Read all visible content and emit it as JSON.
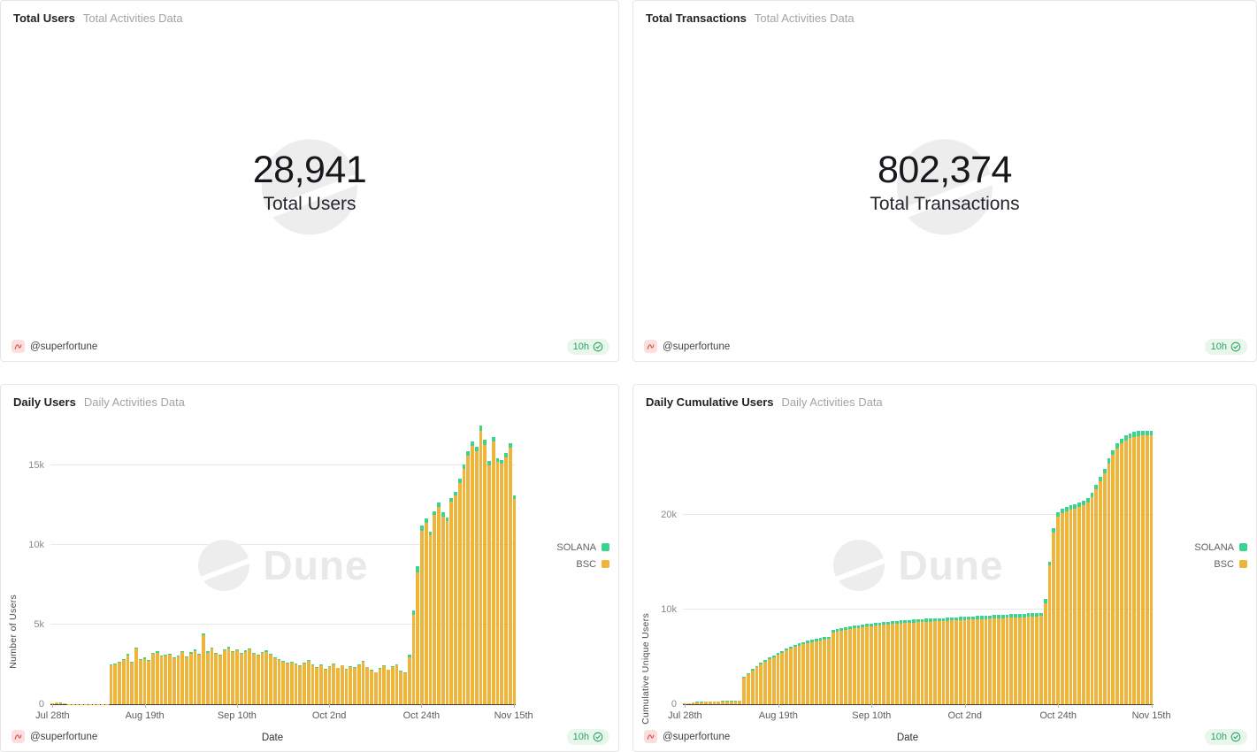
{
  "watermark_text": "Dune",
  "footer": {
    "handle": "@superfortune",
    "badge_time": "10h"
  },
  "colors": {
    "bsc": "#EFB53A",
    "solana": "#3BD48E",
    "badge_bg": "#E8F6EC",
    "badge_text": "#2AA463",
    "gridline": "#E9E9E9",
    "axis_line": "#3F3F3F",
    "watermark": "#EDEDED"
  },
  "counters": [
    {
      "title": "Total Users",
      "subtitle": "Total Activities Data",
      "value": "28,941",
      "label": "Total Users"
    },
    {
      "title": "Total Transactions",
      "subtitle": "Total Activities Data",
      "value": "802,374",
      "label": "Total Transactions"
    }
  ],
  "chart_panels": [
    {
      "title": "Daily Users",
      "subtitle": "Daily Activities Data"
    },
    {
      "title": "Daily Cumulative Users",
      "subtitle": "Daily Activities Data"
    }
  ],
  "chart_data": [
    {
      "type": "bar",
      "stacked": true,
      "title": "Daily Users",
      "xlabel": "Date",
      "ylabel": "Number of Users",
      "ylim": [
        0,
        17500
      ],
      "yticks": [
        0,
        5000,
        10000,
        15000
      ],
      "ytick_labels": [
        "0",
        "5k",
        "10k",
        "15k"
      ],
      "xticks": [
        "Jul 28th",
        "Aug 19th",
        "Sep 10th",
        "Oct 2nd",
        "Oct 24th",
        "Nov 15th"
      ],
      "xtick_positions": [
        0,
        22,
        44,
        66,
        88,
        110
      ],
      "x_range": "Jul 28 - Nov 15, daily (111 bars)",
      "legend": [
        "SOLANA",
        "BSC"
      ],
      "legend_position": "right",
      "grid": true,
      "series": [
        {
          "name": "BSC",
          "color": "#EFB53A",
          "values": [
            30,
            110,
            80,
            45,
            25,
            20,
            15,
            15,
            12,
            10,
            10,
            12,
            15,
            20,
            2450,
            2520,
            2610,
            2780,
            3060,
            2590,
            3480,
            2760,
            2850,
            2700,
            3150,
            3240,
            2980,
            3060,
            3120,
            2870,
            3010,
            3260,
            2930,
            3180,
            3350,
            3100,
            4330,
            3240,
            3490,
            3160,
            3040,
            3390,
            3500,
            3270,
            3380,
            3160,
            3290,
            3420,
            3180,
            3060,
            3210,
            3300,
            3120,
            2890,
            2760,
            2680,
            2540,
            2610,
            2480,
            2390,
            2550,
            2700,
            2460,
            2280,
            2430,
            2190,
            2340,
            2510,
            2260,
            2420,
            2190,
            2350,
            2280,
            2460,
            2650,
            2310,
            2110,
            1980,
            2230,
            2390,
            2150,
            2320,
            2440,
            2060,
            1950,
            2950,
            5600,
            8300,
            10900,
            11400,
            10600,
            11900,
            12400,
            11800,
            11500,
            12700,
            13100,
            13900,
            14800,
            15600,
            16200,
            15900,
            17200,
            16300,
            15000,
            16500,
            15200,
            15100,
            15500,
            16100,
            12900
          ]
        },
        {
          "name": "SOLANA",
          "color": "#3BD48E",
          "values": [
            0,
            5,
            5,
            0,
            0,
            0,
            0,
            0,
            0,
            0,
            0,
            0,
            0,
            0,
            60,
            55,
            70,
            65,
            80,
            60,
            90,
            65,
            70,
            60,
            75,
            80,
            65,
            70,
            75,
            60,
            70,
            85,
            65,
            75,
            85,
            70,
            110,
            75,
            85,
            70,
            65,
            80,
            85,
            75,
            80,
            70,
            75,
            85,
            70,
            65,
            75,
            80,
            70,
            60,
            55,
            55,
            50,
            55,
            50,
            45,
            55,
            60,
            50,
            45,
            50,
            45,
            50,
            55,
            45,
            50,
            45,
            50,
            45,
            55,
            60,
            50,
            40,
            40,
            45,
            50,
            45,
            50,
            55,
            40,
            40,
            150,
            280,
            350,
            300,
            260,
            220,
            240,
            250,
            230,
            220,
            250,
            260,
            270,
            280,
            290,
            300,
            290,
            310,
            300,
            270,
            290,
            270,
            260,
            270,
            280,
            230
          ]
        }
      ]
    },
    {
      "type": "bar",
      "stacked": true,
      "title": "Daily Cumulative Users",
      "xlabel": "Date",
      "ylabel": "Cumulative Unique Users",
      "ylim": [
        0,
        29500
      ],
      "yticks": [
        0,
        10000,
        20000
      ],
      "ytick_labels": [
        "0",
        "10k",
        "20k"
      ],
      "xticks": [
        "Jul 28th",
        "Aug 19th",
        "Sep 10th",
        "Oct 2nd",
        "Oct 24th",
        "Nov 15th"
      ],
      "xtick_positions": [
        0,
        22,
        44,
        66,
        88,
        110
      ],
      "x_range": "Jul 28 - Nov 15, daily (111 bars)",
      "legend": [
        "SOLANA",
        "BSC"
      ],
      "legend_position": "right",
      "grid": true,
      "final_total": 28941,
      "series": [
        {
          "name": "BSC",
          "color": "#EFB53A",
          "values": [
            50,
            120,
            175,
            210,
            233,
            251,
            264,
            277,
            287,
            296,
            305,
            315,
            328,
            346,
            2800,
            3210,
            3600,
            3930,
            4240,
            4500,
            4760,
            5010,
            5245,
            5460,
            5670,
            5875,
            6057,
            6221,
            6366,
            6491,
            6597,
            6693,
            6780,
            6857,
            6924,
            7605,
            7700,
            7785,
            7866,
            7941,
            8016,
            8082,
            8148,
            8205,
            8262,
            8310,
            8356,
            8404,
            8442,
            8482,
            8520,
            8558,
            8586,
            8614,
            8642,
            8670,
            8698,
            8726,
            8744,
            8762,
            8780,
            8808,
            8836,
            8854,
            8872,
            8900,
            8928,
            8956,
            8974,
            8992,
            9010,
            9038,
            9056,
            9084,
            9112,
            9130,
            9148,
            9166,
            9184,
            9202,
            9220,
            9248,
            9276,
            9294,
            9322,
            10700,
            14670,
            18150,
            19840,
            20235,
            20432,
            20580,
            20728,
            20876,
            21074,
            21322,
            21920,
            22718,
            23616,
            24414,
            25512,
            26410,
            27108,
            27606,
            27954,
            28153,
            28302,
            28401,
            28441,
            28441,
            28441
          ]
        },
        {
          "name": "SOLANA",
          "color": "#3BD48E",
          "values": [
            10,
            20,
            25,
            30,
            32,
            34,
            36,
            38,
            40,
            41,
            42,
            44,
            46,
            48,
            100,
            110,
            120,
            130,
            140,
            150,
            160,
            170,
            175,
            180,
            190,
            195,
            203,
            209,
            214,
            219,
            223,
            227,
            230,
            233,
            236,
            245,
            250,
            255,
            264,
            269,
            274,
            278,
            282,
            285,
            288,
            290,
            292,
            294,
            296,
            298,
            300,
            302,
            304,
            306,
            308,
            310,
            312,
            314,
            316,
            318,
            320,
            322,
            324,
            326,
            328,
            330,
            332,
            334,
            336,
            338,
            340,
            342,
            344,
            346,
            348,
            350,
            352,
            354,
            356,
            358,
            360,
            362,
            364,
            366,
            368,
            400,
            430,
            450,
            460,
            465,
            468,
            470,
            472,
            474,
            476,
            478,
            480,
            482,
            484,
            486,
            488,
            490,
            492,
            494,
            496,
            498,
            498,
            499,
            500,
            500,
            500
          ]
        }
      ]
    }
  ]
}
